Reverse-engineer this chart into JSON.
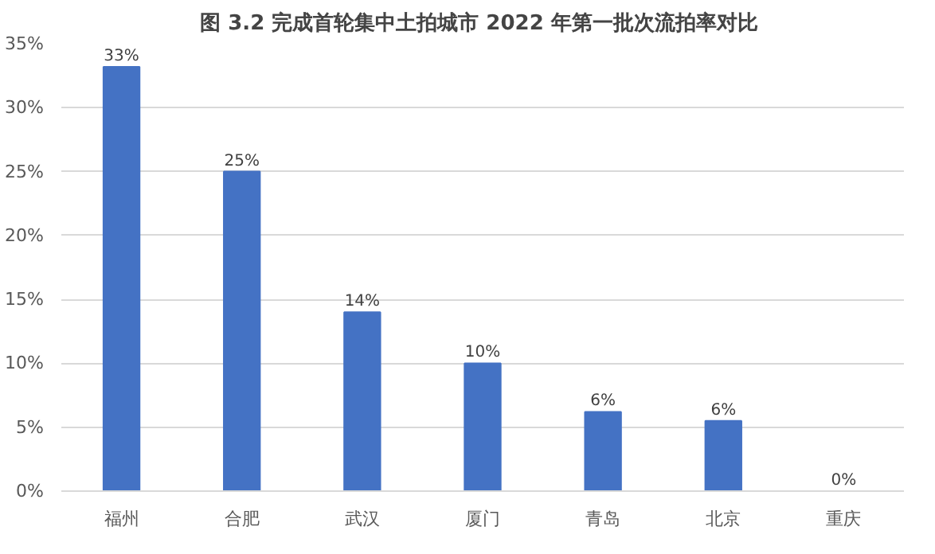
{
  "chart_data": {
    "type": "bar",
    "title": "图 3.2  完成首轮集中土拍城市 2022 年第一批次流拍率对比",
    "categories": [
      "福州",
      "合肥",
      "武汉",
      "厦门",
      "青岛",
      "北京",
      "重庆"
    ],
    "values": [
      33.2,
      25,
      14,
      10,
      6.2,
      5.5,
      0
    ],
    "value_labels": [
      "33%",
      "25%",
      "14%",
      "10%",
      "6%",
      "6%",
      "0%"
    ],
    "color": "#4472c4",
    "ylim": [
      0,
      35
    ],
    "yticks": [
      {
        "value": 0,
        "label": "0%"
      },
      {
        "value": 5,
        "label": "5%"
      },
      {
        "value": 10,
        "label": "10%"
      },
      {
        "value": 15,
        "label": "15%"
      },
      {
        "value": 20,
        "label": "20%"
      },
      {
        "value": 25,
        "label": "25%"
      },
      {
        "value": 30,
        "label": "30%"
      },
      {
        "value": 35,
        "label": "35%"
      }
    ],
    "grid": "y"
  }
}
